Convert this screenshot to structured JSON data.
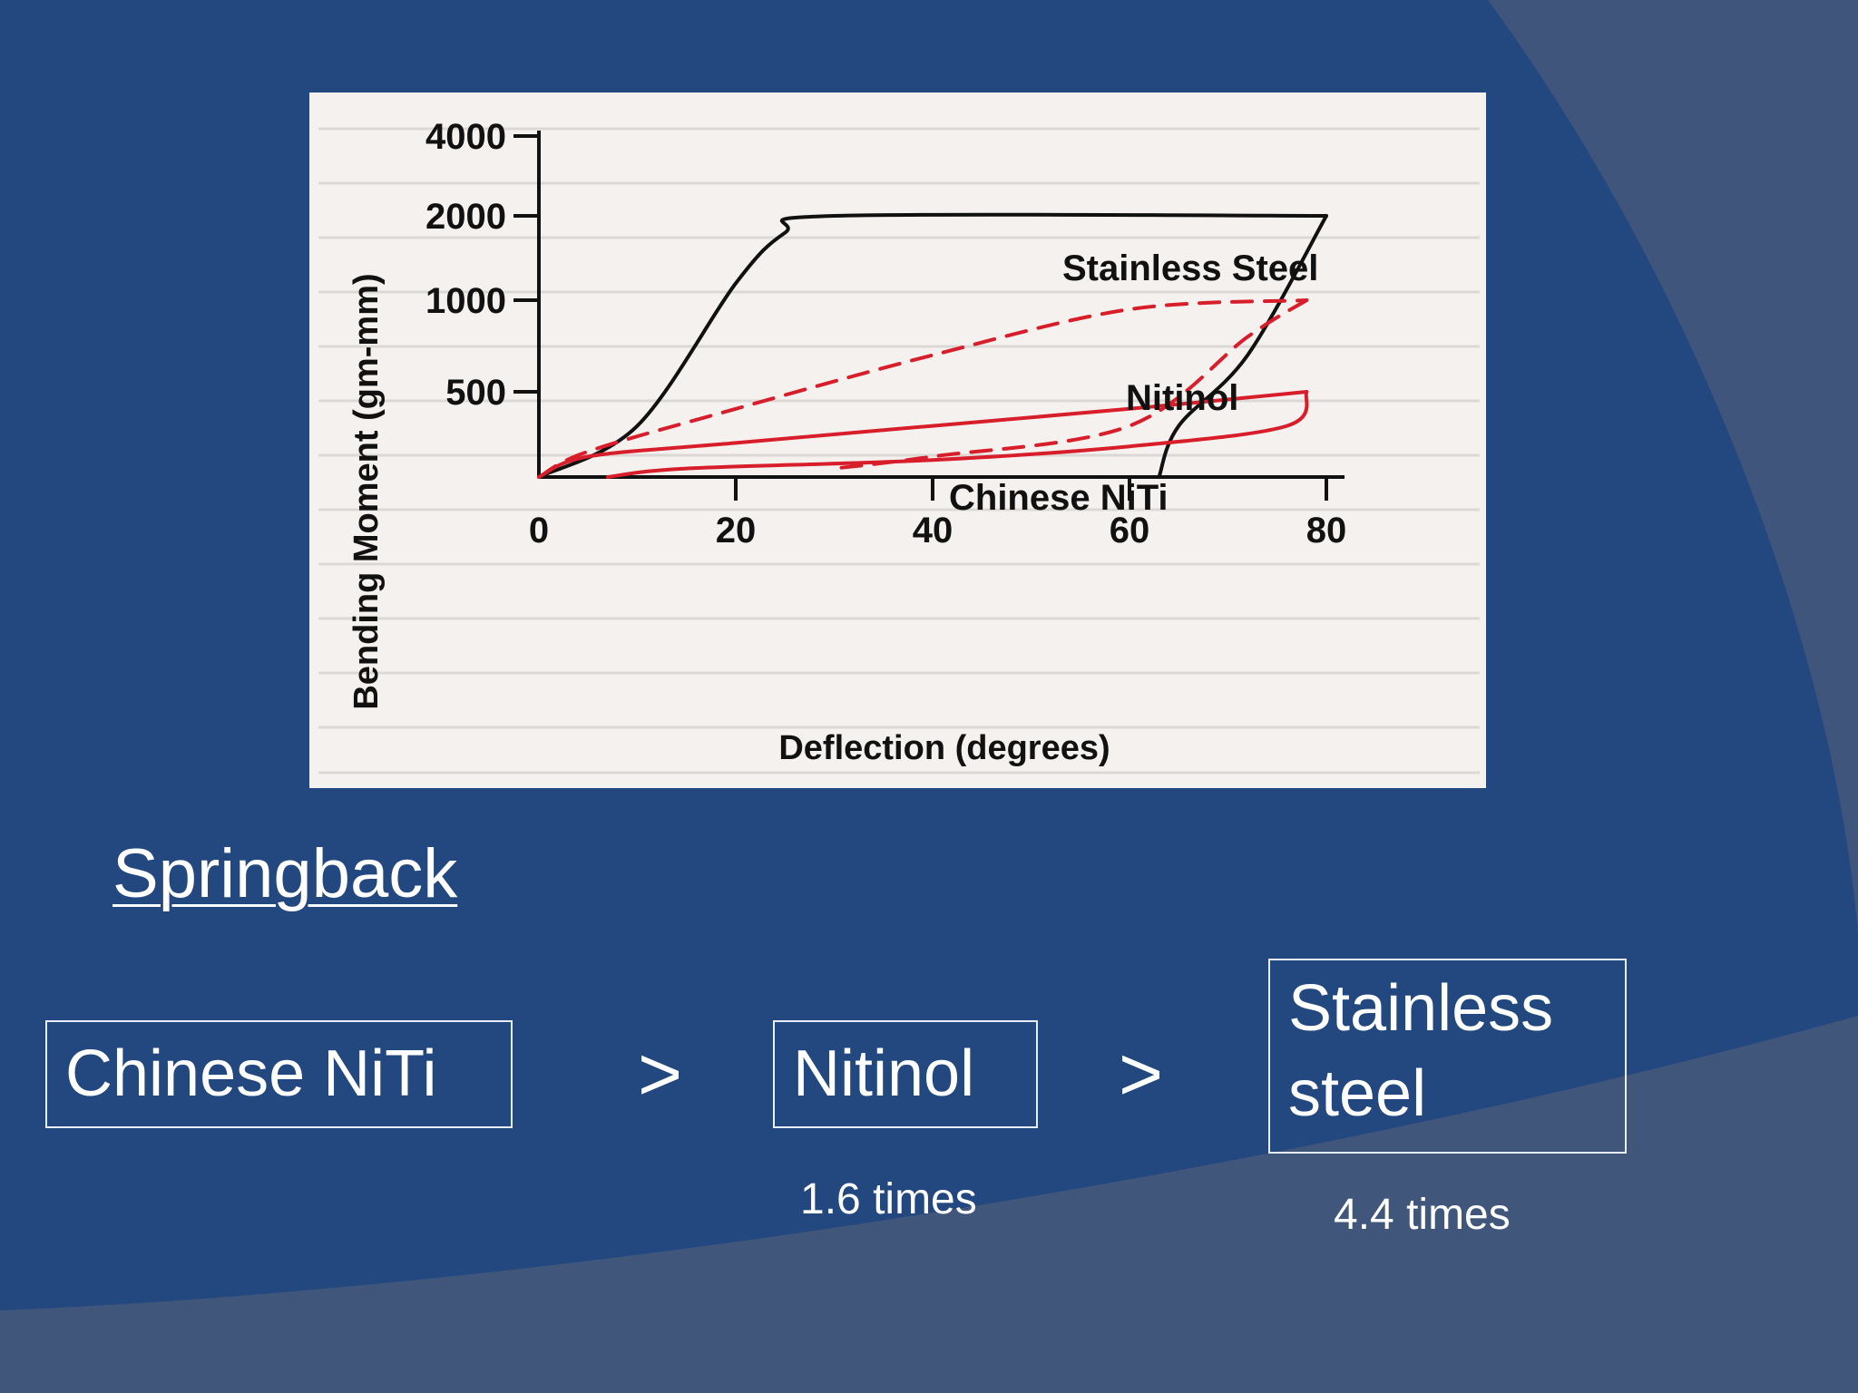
{
  "chart_data": {
    "type": "line",
    "xlabel": "Deflection  (degrees)",
    "ylabel": "Bending Moment  (gm-mm)",
    "x_ticks": [
      0,
      20,
      40,
      60,
      80
    ],
    "xlim": [
      0,
      80
    ],
    "y_ticks": [
      "4000",
      "2000",
      "1000",
      "500"
    ],
    "y_scale": "nonlinear (ticks at 500, 1000, 2000, 4000 equally spaced)",
    "series": [
      {
        "name": "Stainless Steel",
        "color": "#111111",
        "style": "solid",
        "loading": [
          [
            0,
            0
          ],
          [
            10,
            300
          ],
          [
            20,
            1200
          ],
          [
            25,
            1800
          ],
          [
            30,
            2000
          ],
          [
            80,
            2000
          ]
        ],
        "unloading": [
          [
            80,
            2000
          ],
          [
            72,
            700
          ],
          [
            65,
            300
          ],
          [
            63,
            0
          ]
        ]
      },
      {
        "name": "Nitinol",
        "color": "#d81e2a",
        "style": "dashed",
        "loading": [
          [
            0,
            0
          ],
          [
            5,
            150
          ],
          [
            20,
            400
          ],
          [
            40,
            700
          ],
          [
            60,
            950
          ],
          [
            78,
            1000
          ]
        ],
        "unloading": [
          [
            78,
            1000
          ],
          [
            72,
            800
          ],
          [
            60,
            300
          ],
          [
            40,
            120
          ],
          [
            30,
            50
          ]
        ]
      },
      {
        "name": "Chinese NiTi",
        "color": "#d81e2a",
        "style": "solid",
        "loading": [
          [
            0,
            0
          ],
          [
            5,
            120
          ],
          [
            20,
            200
          ],
          [
            40,
            300
          ],
          [
            60,
            400
          ],
          [
            78,
            500
          ]
        ],
        "unloading": [
          [
            78,
            500
          ],
          [
            76,
            300
          ],
          [
            60,
            180
          ],
          [
            40,
            100
          ],
          [
            15,
            50
          ],
          [
            7,
            0
          ]
        ]
      }
    ]
  },
  "slide": {
    "heading": "Springback",
    "boxes": [
      "Chinese NiTi",
      "Nitinol",
      "Stainless\nsteel"
    ],
    "comparators": [
      ">",
      ">"
    ],
    "notes": [
      "1.6 times",
      "4.4 times"
    ]
  },
  "colors": {
    "background": "#22487f",
    "accent_dark": "#3e5575",
    "curve_red": "#d81e2a"
  }
}
